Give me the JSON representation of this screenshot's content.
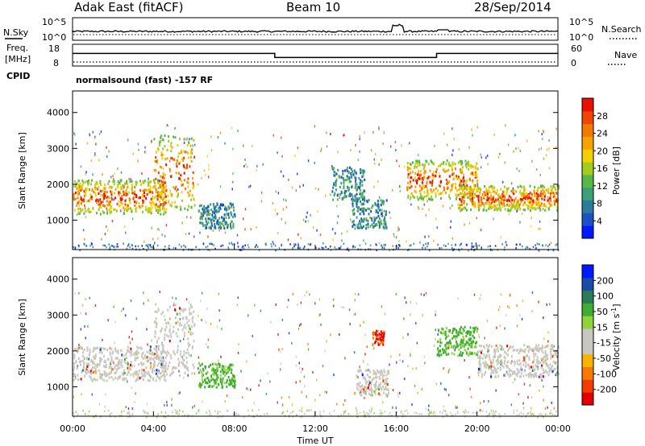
{
  "header": {
    "station": "Adak East (fitACF)",
    "beam": "Beam 10",
    "date": "28/Sep/2014"
  },
  "noise_panel": {
    "left_label": "N.Sky",
    "right_label": "N.Search",
    "left_ticks": [
      "10^5",
      "10^0"
    ],
    "right_ticks": [
      "10^5",
      "10^0"
    ]
  },
  "freq_panel": {
    "left_label_1": "Freq.",
    "left_label_2": "[MHz]",
    "left_ticks": [
      "18",
      "8"
    ],
    "right_label": "Nave",
    "right_ticks": [
      "60",
      "0"
    ],
    "freq_segments": [
      {
        "t0": 0,
        "t1": 10,
        "mhz": 14.5
      },
      {
        "t0": 10,
        "t1": 18,
        "mhz": 12.4
      },
      {
        "t0": 18,
        "t1": 24,
        "mhz": 14.5
      }
    ]
  },
  "cpid": {
    "label": "CPID",
    "text": "normalsound (fast) -157 RF"
  },
  "chart_data": [
    {
      "type": "heatmap",
      "ylabel": "Slant Range [km]",
      "yticks": [
        "1000",
        "2000",
        "3000",
        "4000"
      ],
      "ylim": [
        180,
        4600
      ],
      "xlim": [
        0,
        24
      ],
      "colorbar": {
        "label": "Power [dB]",
        "ticks": [
          "4",
          "8",
          "12",
          "16",
          "20",
          "24",
          "28"
        ],
        "range": [
          0,
          32
        ],
        "colors": [
          "#0019ff",
          "#1a52c6",
          "#2a7c9e",
          "#3ba07a",
          "#58b845",
          "#a3cc1f",
          "#f2d000",
          "#f6a300",
          "#f27a00",
          "#ef4500",
          "#e91000"
        ]
      },
      "regions": [
        {
          "t0": 0.0,
          "t1": 4.6,
          "r0": 1200,
          "r1": 2150,
          "level": "high"
        },
        {
          "t0": 4.0,
          "t1": 6.0,
          "r0": 1300,
          "r1": 3400,
          "level": "high"
        },
        {
          "t0": 6.2,
          "t1": 8.0,
          "r0": 800,
          "r1": 1500,
          "level": "low"
        },
        {
          "t0": 12.8,
          "t1": 14.4,
          "r0": 1600,
          "r1": 2500,
          "level": "low"
        },
        {
          "t0": 13.8,
          "t1": 15.5,
          "r0": 800,
          "r1": 1600,
          "level": "low"
        },
        {
          "t0": 16.5,
          "t1": 20.0,
          "r0": 1600,
          "r1": 2700,
          "level": "high"
        },
        {
          "t0": 19.0,
          "t1": 24.0,
          "r0": 1300,
          "r1": 2000,
          "level": "high"
        }
      ]
    },
    {
      "type": "heatmap",
      "ylabel": "Slant Range [km]",
      "yticks": [
        "1000",
        "2000",
        "3000",
        "4000"
      ],
      "ylim": [
        180,
        4600
      ],
      "xlim": [
        0,
        24
      ],
      "xticks": [
        "00:00",
        "04:00",
        "08:00",
        "12:00",
        "16:00",
        "20:00",
        "00:00"
      ],
      "xlabel": "Time UT",
      "colorbar": {
        "label": "Velocity [m s^-1]",
        "ticks": [
          "200",
          "100",
          "50",
          "15",
          "-15",
          "-50",
          "-100",
          "-200"
        ],
        "range": [
          -250,
          250
        ],
        "colors": [
          "#e50000",
          "#f23c00",
          "#f67900",
          "#f6b300",
          "#c8c8c0",
          "#c8c8c0",
          "#8fd43c",
          "#3fae30",
          "#2a7c56",
          "#1c4aa8",
          "#0019ff"
        ]
      },
      "regions": [
        {
          "t0": 0.0,
          "t1": 4.6,
          "r0": 1200,
          "r1": 2150,
          "level": "ground"
        },
        {
          "t0": 4.0,
          "t1": 6.0,
          "r0": 1300,
          "r1": 3400,
          "level": "ground"
        },
        {
          "t0": 6.2,
          "t1": 8.0,
          "r0": 1000,
          "r1": 1700,
          "level": "green"
        },
        {
          "t0": 14.0,
          "t1": 15.6,
          "r0": 800,
          "r1": 1500,
          "level": "ground"
        },
        {
          "t0": 14.8,
          "t1": 15.4,
          "r0": 2200,
          "r1": 2600,
          "level": "red"
        },
        {
          "t0": 18.0,
          "t1": 20.0,
          "r0": 1900,
          "r1": 2700,
          "level": "green"
        },
        {
          "t0": 20.0,
          "t1": 24.0,
          "r0": 1300,
          "r1": 2200,
          "level": "ground"
        }
      ]
    }
  ]
}
